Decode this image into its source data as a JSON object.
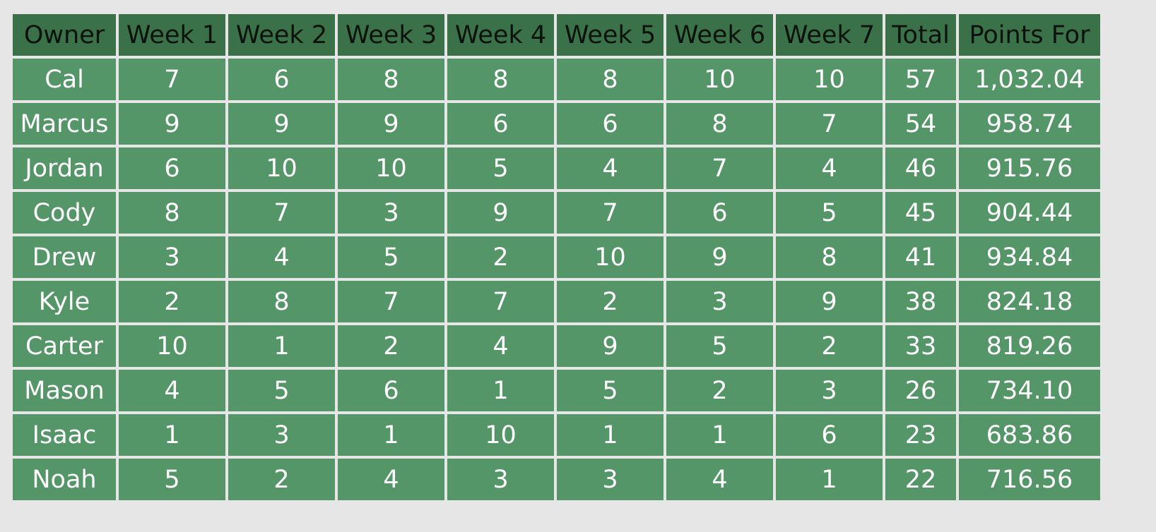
{
  "table": {
    "headers": [
      "Owner",
      "Week 1",
      "Week 2",
      "Week 3",
      "Week 4",
      "Week 5",
      "Week 6",
      "Week 7",
      "Total",
      "Points For"
    ],
    "rows": [
      [
        "Cal",
        "7",
        "6",
        "8",
        "8",
        "8",
        "10",
        "10",
        "57",
        "1,032.04"
      ],
      [
        "Marcus",
        "9",
        "9",
        "9",
        "6",
        "6",
        "8",
        "7",
        "54",
        "958.74"
      ],
      [
        "Jordan",
        "6",
        "10",
        "10",
        "5",
        "4",
        "7",
        "4",
        "46",
        "915.76"
      ],
      [
        "Cody",
        "8",
        "7",
        "3",
        "9",
        "7",
        "6",
        "5",
        "45",
        "904.44"
      ],
      [
        "Drew",
        "3",
        "4",
        "5",
        "2",
        "10",
        "9",
        "8",
        "41",
        "934.84"
      ],
      [
        "Kyle",
        "2",
        "8",
        "7",
        "7",
        "2",
        "3",
        "9",
        "38",
        "824.18"
      ],
      [
        "Carter",
        "10",
        "1",
        "2",
        "4",
        "9",
        "5",
        "2",
        "33",
        "819.26"
      ],
      [
        "Mason",
        "4",
        "5",
        "6",
        "1",
        "5",
        "2",
        "3",
        "26",
        "734.10"
      ],
      [
        "Isaac",
        "1",
        "3",
        "1",
        "10",
        "1",
        "1",
        "6",
        "23",
        "683.86"
      ],
      [
        "Noah",
        "5",
        "2",
        "4",
        "3",
        "3",
        "4",
        "1",
        "22",
        "716.56"
      ]
    ]
  },
  "colors": {
    "header_bg": "#3b7148",
    "cell_bg": "#559669",
    "grid": "#e6e6e6"
  }
}
